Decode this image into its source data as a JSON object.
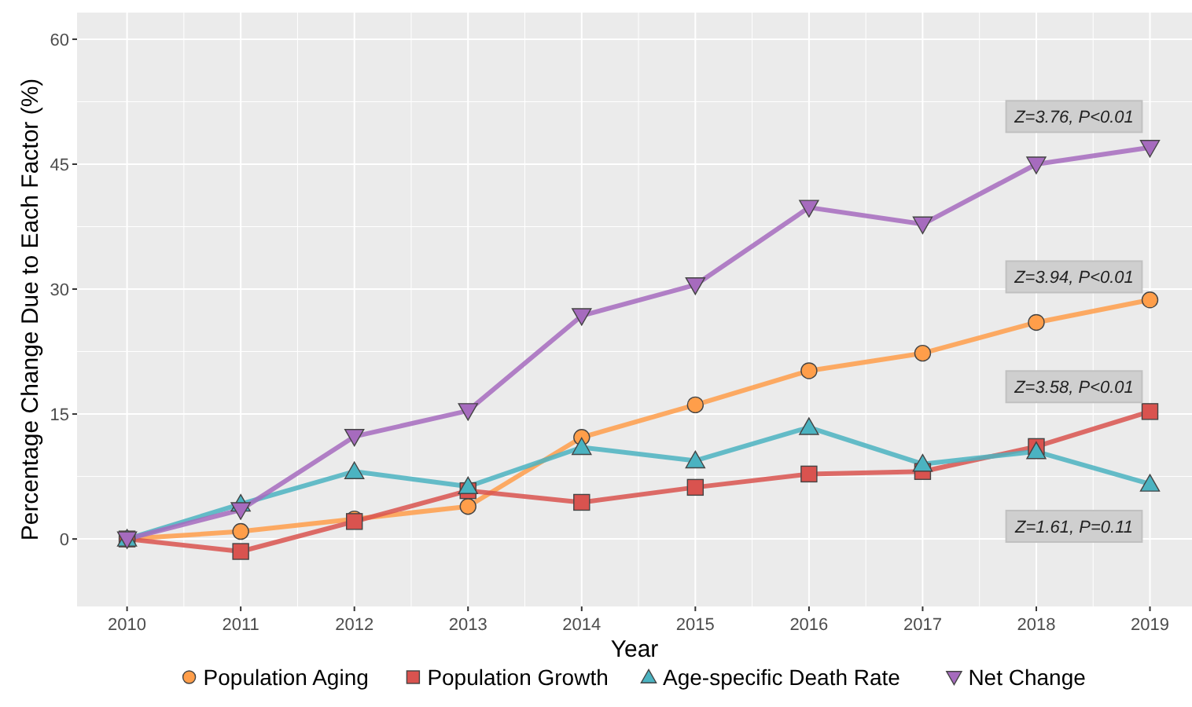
{
  "chart_data": {
    "type": "line",
    "xlabel": "Year",
    "ylabel": "Percentage Change Due to Each Factor (%)",
    "x": [
      2010,
      2011,
      2012,
      2013,
      2014,
      2015,
      2016,
      2017,
      2018,
      2019
    ],
    "xlim": [
      2009.56,
      2019.37
    ],
    "xticks": [
      2010,
      2011,
      2012,
      2013,
      2014,
      2015,
      2016,
      2017,
      2018,
      2019
    ],
    "ylim": [
      -8.1,
      63.2
    ],
    "yticks": [
      0,
      15,
      30,
      45,
      60
    ],
    "grid": true,
    "legend": "bottom",
    "series": [
      {
        "name": "Population Aging",
        "color": "#ff9e4a",
        "marker": "circle",
        "values": [
          0,
          0.9,
          2.4,
          3.9,
          12.2,
          16.1,
          20.2,
          22.3,
          26,
          28.7
        ]
      },
      {
        "name": "Population Growth",
        "color": "#d9534f",
        "marker": "square",
        "values": [
          0,
          -1.5,
          2.1,
          5.8,
          4.4,
          6.2,
          7.8,
          8.1,
          11.1,
          15.3
        ]
      },
      {
        "name": "Age-specific Death Rate",
        "color": "#4bb3c1",
        "marker": "triangle",
        "values": [
          0,
          4.2,
          8.1,
          6.3,
          11,
          9.4,
          13.4,
          9,
          10.5,
          6.6
        ]
      },
      {
        "name": "Net Change",
        "color": "#a66bbe",
        "marker": "triangle-down",
        "values": [
          0,
          3.5,
          12.3,
          15.4,
          26.8,
          30.5,
          39.8,
          37.8,
          45,
          47
        ]
      }
    ],
    "annotations": [
      "Z=3.76, P<0.01",
      "Z=3.94, P<0.01",
      "Z=3.58, P<0.01",
      "Z=1.61, P=0.11"
    ]
  }
}
